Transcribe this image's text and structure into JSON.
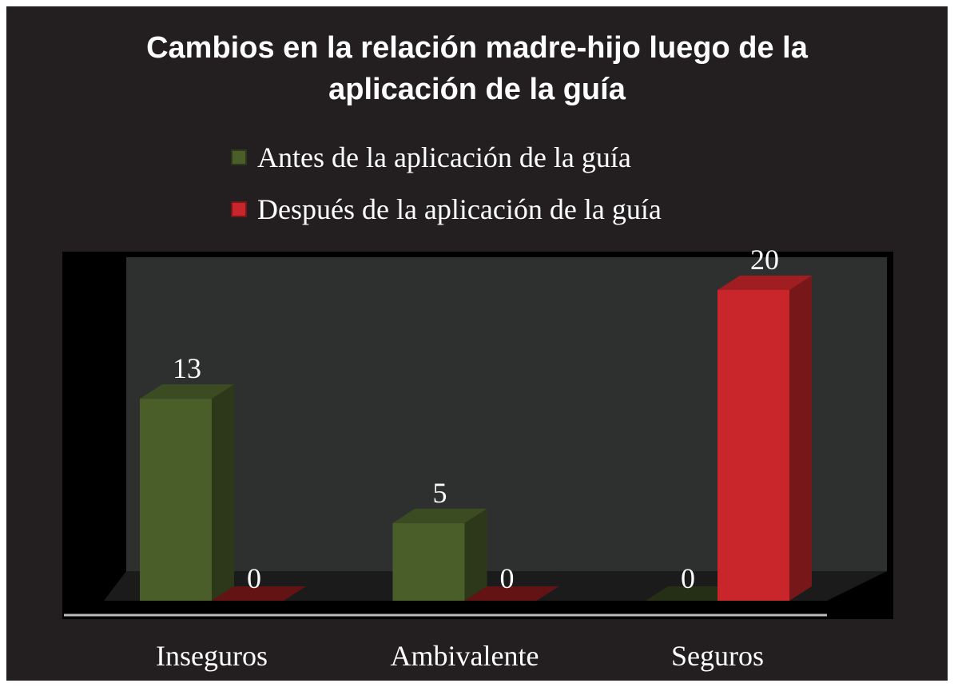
{
  "chart_data": {
    "type": "bar3d",
    "title": "Cambios en la relación madre-hijo luego de la aplicación de la guía",
    "categories": [
      "Inseguros",
      "Ambivalente",
      "Seguros"
    ],
    "series": [
      {
        "name": "Antes de la aplicación de la guía",
        "color": "#4a5e2a",
        "values": [
          13,
          5,
          0
        ]
      },
      {
        "name": "Después de la aplicación de la guía",
        "color": "#c8262a",
        "values": [
          0,
          0,
          20
        ]
      }
    ]
  }
}
